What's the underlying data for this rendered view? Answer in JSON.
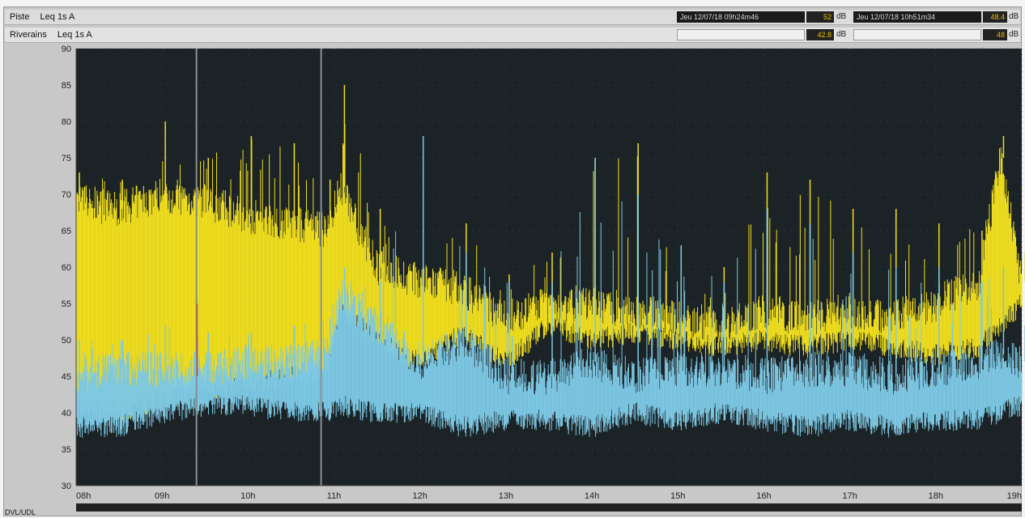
{
  "header": {
    "row1_channel": "Piste",
    "row1_metric": "Leq 1s  A",
    "row2_channel": "Riverains",
    "row2_metric": "Leq 1s  A",
    "cursor1_text": "Jeu 12/07/18 09h24m46",
    "cursor1_value1": "52",
    "cursor1_value2": "42.8",
    "cursor2_text": "Jeu 12/07/18 10h51m34",
    "cursor2_value1": "48.4",
    "cursor2_value2": "48",
    "unit": "dB"
  },
  "footer": {
    "label": "DVL/UDL"
  },
  "colors": {
    "plot_background": "#1c2326",
    "series_piste": "#f0de1e",
    "series_riverains": "#7dc8e4",
    "marker_gray": "#8a8f92",
    "marker_red": "#e03a1a"
  },
  "chart_data": {
    "type": "area",
    "ylim": [
      30,
      90
    ],
    "xlim": [
      "08h",
      "19h"
    ],
    "y_ticks": [
      "30",
      "35",
      "40",
      "45",
      "50",
      "55",
      "60",
      "65",
      "70",
      "75",
      "80",
      "85",
      "90"
    ],
    "x_ticks": [
      "08h",
      "09h",
      "10h",
      "11h",
      "12h",
      "13h",
      "14h",
      "15h",
      "16h",
      "17h",
      "18h",
      "19h"
    ],
    "grid": true,
    "cursors": [
      "09h24",
      "10h51"
    ],
    "series": [
      {
        "name": "Piste",
        "x": [
          "08h00",
          "08h30",
          "09h00",
          "09h30",
          "10h00",
          "10h30",
          "10h55",
          "11h05",
          "11h30",
          "12h00",
          "12h30",
          "13h00",
          "13h30",
          "14h00",
          "14h30",
          "15h00",
          "15h30",
          "16h00",
          "16h30",
          "17h00",
          "17h30",
          "18h00",
          "18h30",
          "18h45",
          "19h00"
        ],
        "low": [
          41,
          40,
          42,
          43,
          44,
          45,
          46,
          54,
          50,
          47,
          51,
          47,
          52,
          50,
          51,
          50,
          49,
          50,
          49,
          50,
          49,
          48,
          49,
          52,
          55
        ],
        "high": [
          69,
          68,
          70,
          69,
          67,
          66,
          65,
          71,
          60,
          58,
          57,
          53,
          55,
          55,
          54,
          53,
          52,
          54,
          53,
          54,
          53,
          55,
          58,
          75,
          58
        ],
        "peaks": [
          73,
          72,
          80,
          75,
          78,
          77,
          72,
          85,
          68,
          60,
          66,
          59,
          62,
          75,
          77,
          62,
          60,
          73,
          72,
          68,
          68,
          66,
          65,
          78,
          62
        ]
      },
      {
        "name": "Riverains",
        "x": [
          "08h00",
          "08h30",
          "09h00",
          "09h30",
          "10h00",
          "10h30",
          "10h55",
          "11h05",
          "11h30",
          "12h00",
          "12h30",
          "13h00",
          "13h30",
          "14h00",
          "14h30",
          "15h00",
          "15h30",
          "16h00",
          "16h30",
          "17h00",
          "17h30",
          "18h00",
          "18h30",
          "18h45",
          "19h00"
        ],
        "low": [
          38,
          38,
          40,
          41,
          41,
          40,
          40,
          41,
          40,
          40,
          38,
          39,
          39,
          38,
          40,
          39,
          40,
          39,
          38,
          39,
          38,
          39,
          39,
          40,
          41
        ],
        "high": [
          45,
          46,
          46,
          46,
          47,
          47,
          48,
          56,
          52,
          47,
          50,
          45,
          45,
          47,
          45,
          46,
          46,
          45,
          46,
          46,
          45,
          46,
          47,
          48,
          47
        ],
        "peaks": [
          50,
          50,
          52,
          51,
          51,
          52,
          53,
          60,
          58,
          78,
          62,
          58,
          58,
          75,
          70,
          63,
          58,
          68,
          66,
          62,
          60,
          60,
          58,
          60,
          52
        ]
      }
    ]
  }
}
